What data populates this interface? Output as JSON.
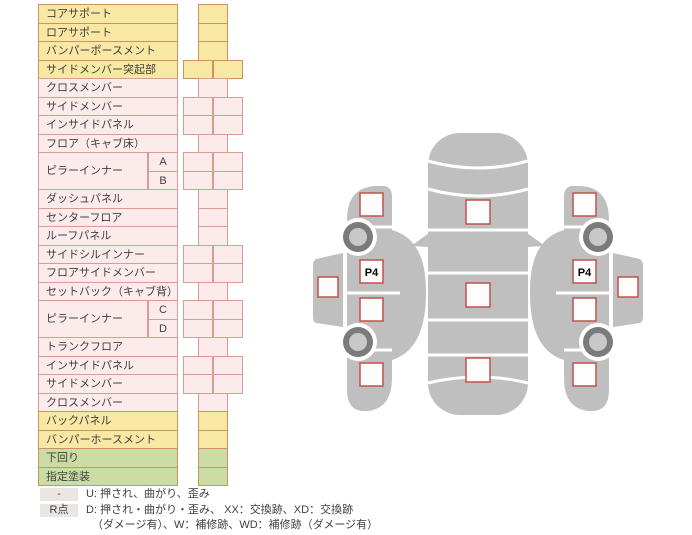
{
  "colors": {
    "yellow_fill": "#f8e8a4",
    "yellow_border": "#c9955e",
    "pink_fill": "#fcebeb",
    "pink_border": "#d99b96",
    "green_fill": "#cbdca4",
    "green_border": "#c9955e",
    "body_gray": "#bfbfbf",
    "wheel_ring": "#7b7b7b",
    "wheel_hub": "#c8c8c8",
    "marker_fill": "#fdfdfd",
    "marker_border": "#c0504d",
    "badge_bg": "#eae7e3",
    "text": "#3f3f3f"
  },
  "table": {
    "rows": [
      {
        "label": "コアサポート",
        "type": "yellow",
        "cells": "single"
      },
      {
        "label": "ロアサポート",
        "type": "yellow",
        "cells": "single"
      },
      {
        "label": "バンパーポースメント",
        "type": "yellow",
        "cells": "single"
      },
      {
        "label": "サイドメンバー突起部",
        "type": "yellow",
        "cells": "double"
      },
      {
        "label": "クロスメンバー",
        "type": "pink",
        "cells": "single"
      },
      {
        "label": "サイドメンバー",
        "type": "pink",
        "cells": "double"
      },
      {
        "label": "インサイドパネル",
        "type": "pink",
        "cells": "double"
      },
      {
        "label": "フロア（キャブ床）",
        "type": "pink",
        "cells": "single"
      },
      {
        "label": "ピラーインナー",
        "sub": "A",
        "group": "start",
        "type": "pink",
        "cells": "double"
      },
      {
        "label": "",
        "sub": "B",
        "group": "end",
        "type": "pink",
        "cells": "double"
      },
      {
        "label": "ダッシュパネル",
        "type": "pink",
        "cells": "single"
      },
      {
        "label": "センターフロア",
        "type": "pink",
        "cells": "single"
      },
      {
        "label": "ルーフパネル",
        "type": "pink",
        "cells": "single"
      },
      {
        "label": "サイドシルインナー",
        "type": "pink",
        "cells": "double"
      },
      {
        "label": "フロアサイドメンバー",
        "type": "pink",
        "cells": "double"
      },
      {
        "label": "セットバック（キャブ背）",
        "type": "pink",
        "cells": "single"
      },
      {
        "label": "ピラーインナー",
        "sub": "C",
        "group": "start",
        "type": "pink",
        "cells": "double"
      },
      {
        "label": "",
        "sub": "D",
        "group": "end",
        "type": "pink",
        "cells": "double"
      },
      {
        "label": "トランクフロア",
        "type": "pink",
        "cells": "single"
      },
      {
        "label": "インサイドパネル",
        "type": "pink",
        "cells": "double"
      },
      {
        "label": "サイドメンバー",
        "type": "pink",
        "cells": "double"
      },
      {
        "label": "クロスメンバー",
        "type": "pink",
        "cells": "single"
      },
      {
        "label": "バックパネル",
        "type": "yellow",
        "cells": "single"
      },
      {
        "label": "バンパーホースメント",
        "type": "yellow",
        "cells": "single"
      },
      {
        "label": "下回り",
        "type": "green",
        "cells": "single"
      },
      {
        "label": "指定塗装",
        "type": "green",
        "cells": "single"
      }
    ]
  },
  "legend": {
    "rows": [
      {
        "badge": "-",
        "text": "U: 押され、曲がり、歪み"
      },
      {
        "badge": "R点",
        "text": "D: 押され・曲がり・歪み、 XX：交換跡、XD：交換跡",
        "text2": "（ダメージ有）、W：補修跡、WD：補修跡（ダメージ有）"
      }
    ]
  },
  "diagram": {
    "p4_label": "P4",
    "left_side_markers": [
      "",
      "P4",
      "",
      "",
      ""
    ],
    "top_view_markers": [
      "",
      "",
      ""
    ],
    "right_side_markers": [
      "",
      "P4",
      "",
      "",
      ""
    ]
  }
}
